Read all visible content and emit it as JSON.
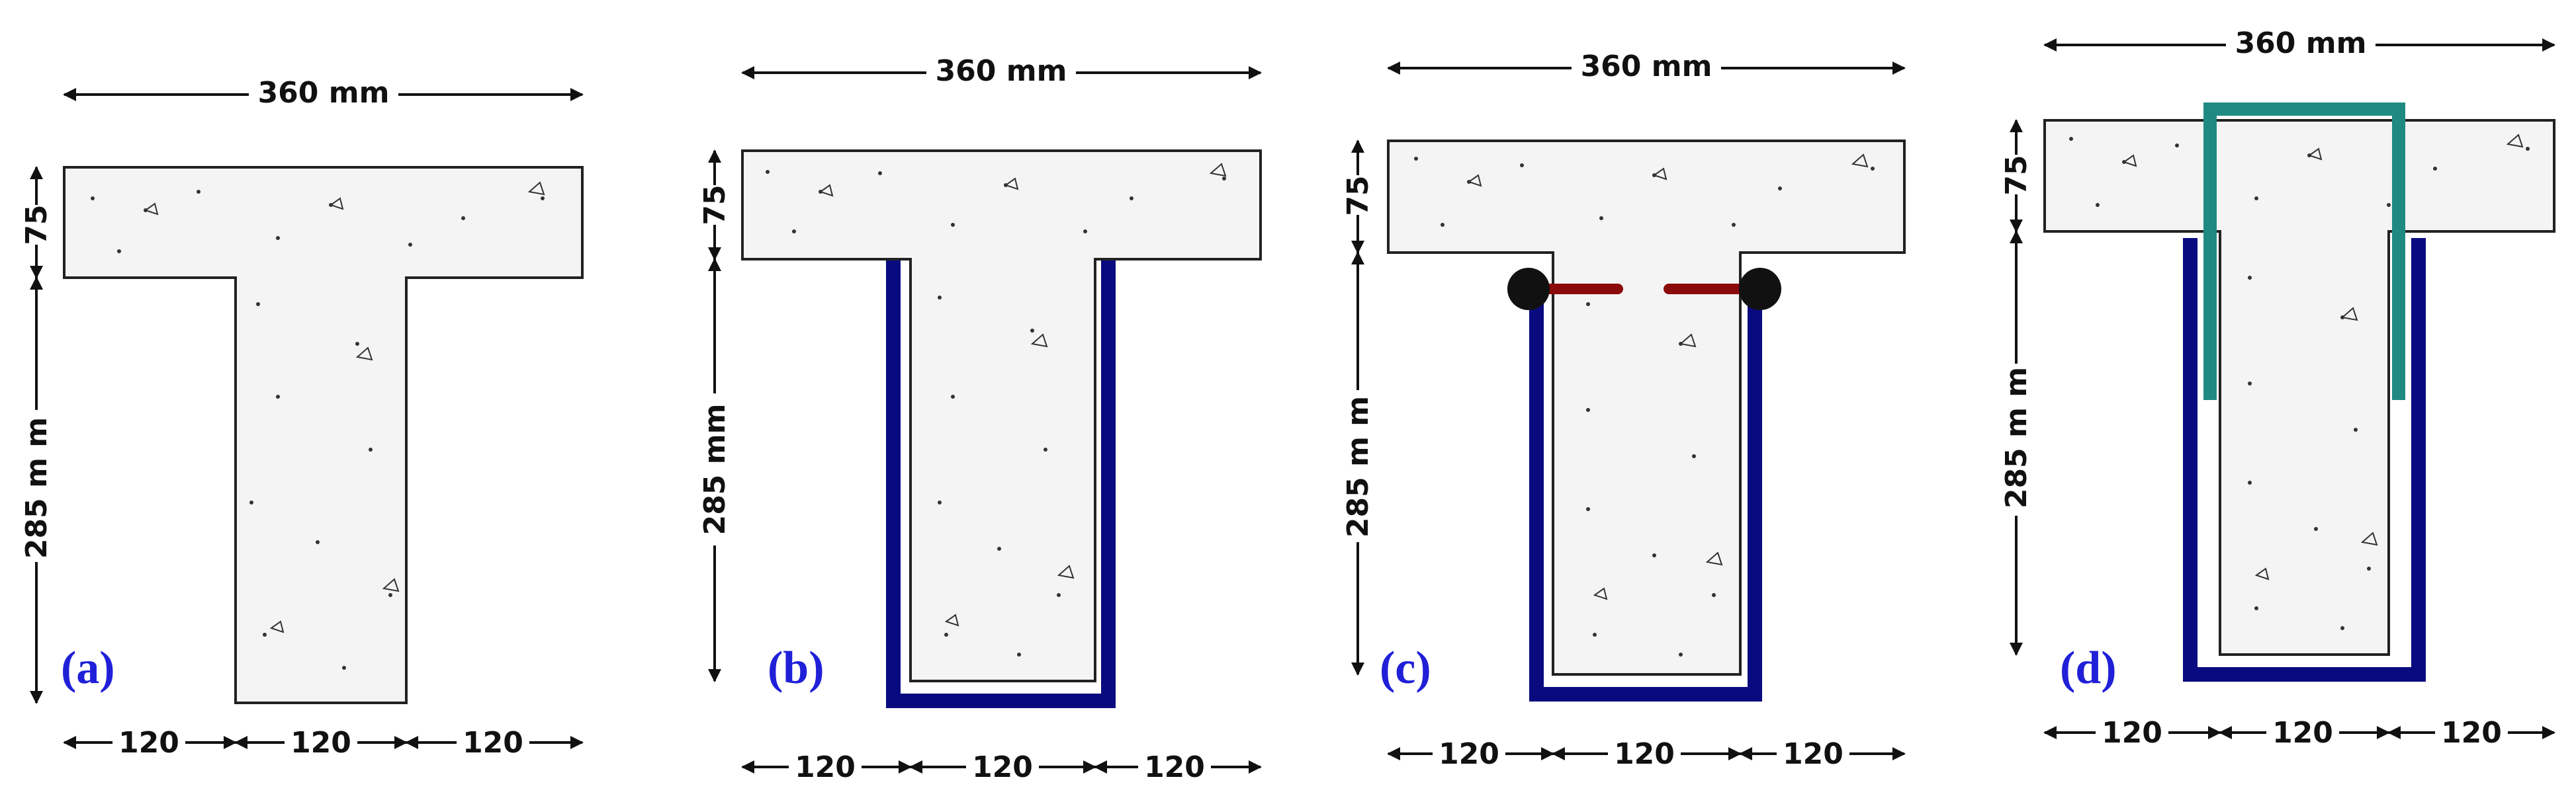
{
  "panels": [
    {
      "id": "a",
      "label": "(a)",
      "top_width": "360 mm",
      "flange_depth": "75",
      "web_depth": "285 m m",
      "bottom": [
        "120",
        "120",
        "120"
      ],
      "strengthening": "none"
    },
    {
      "id": "b",
      "label": "(b)",
      "top_width": "360 mm",
      "flange_depth": "75",
      "web_depth": "285 mm",
      "bottom": [
        "120",
        "120",
        "120"
      ],
      "strengthening": "U-wrap"
    },
    {
      "id": "c",
      "label": "(c)",
      "top_width": "360 mm",
      "flange_depth": "75",
      "web_depth": "285 m m",
      "bottom": [
        "120",
        "120",
        "120"
      ],
      "strengthening": "U-wrap with anchors"
    },
    {
      "id": "d",
      "label": "(d)",
      "top_width": "360 mm",
      "flange_depth": "75",
      "web_depth": "285 m m",
      "bottom": [
        "120",
        "120",
        "120"
      ],
      "strengthening": "U-wrap with inverted U-anchor through flange"
    }
  ],
  "colors": {
    "concrete_fill": "#f4f4f4",
    "outline": "#222222",
    "wrap": "#0a0a80",
    "anchor_bar": "#8b0a0a",
    "anchor_head": "#111111",
    "u_anchor": "#1f8a82",
    "label": "#2020d8"
  }
}
